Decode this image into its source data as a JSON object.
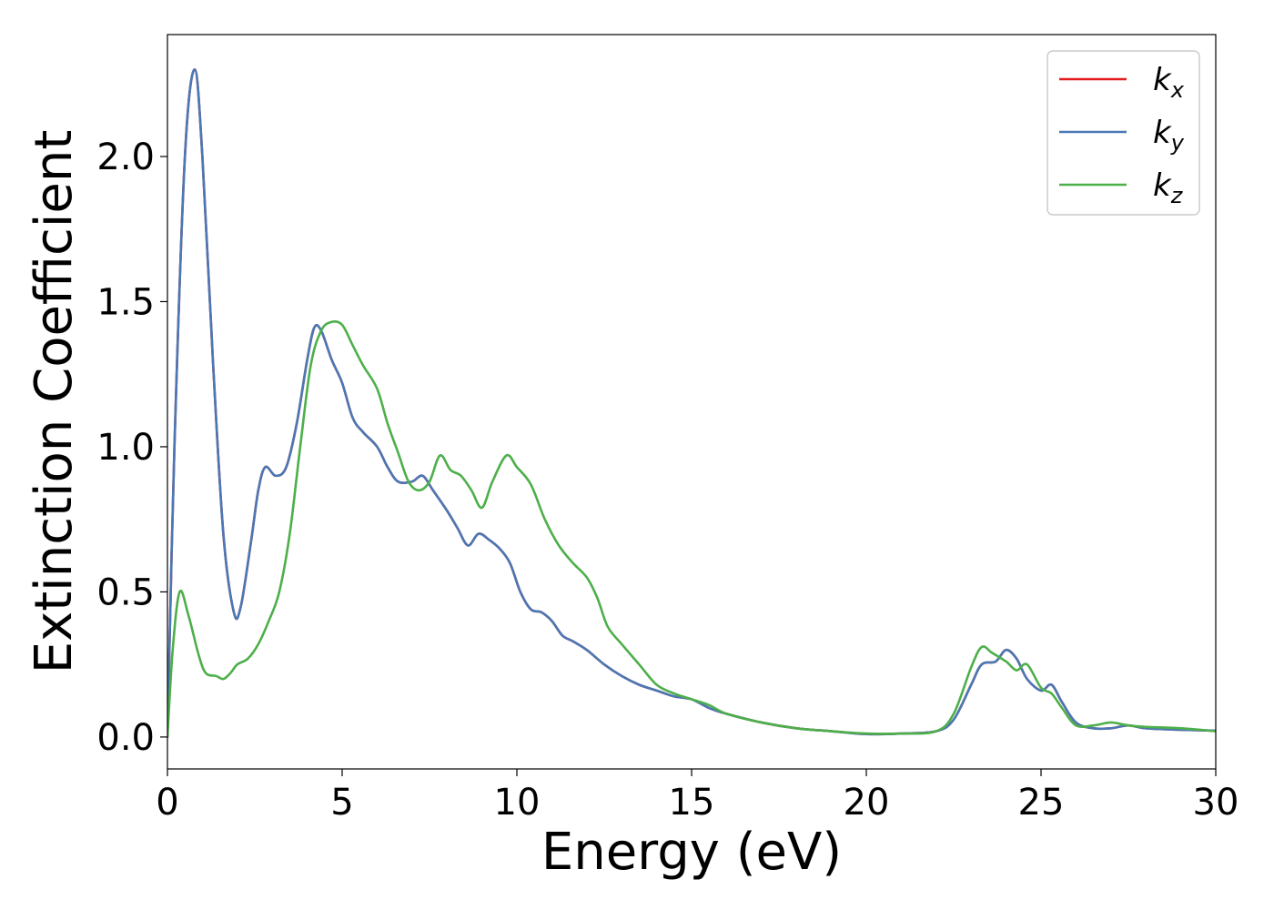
{
  "chart_data": {
    "type": "line",
    "title": "",
    "xlabel": "Energy (eV)",
    "ylabel": "Extinction Coefficient",
    "xlim": [
      0,
      30
    ],
    "ylim": [
      -0.11,
      2.42
    ],
    "xticks": [
      0,
      5,
      10,
      15,
      20,
      25,
      30
    ],
    "xtick_labels": [
      "0",
      "5",
      "10",
      "15",
      "20",
      "25",
      "30"
    ],
    "yticks": [
      0.0,
      0.5,
      1.0,
      1.5,
      2.0
    ],
    "ytick_labels": [
      "0.0",
      "0.5",
      "1.0",
      "1.5",
      "2.0"
    ],
    "grid": false,
    "legend_position": "top-right",
    "series": [
      {
        "name": "k_x",
        "legend_base": "k",
        "legend_sub": "x",
        "color": "#e41a1c",
        "points": [
          [
            0,
            0.0
          ],
          [
            0.2,
            1.0
          ],
          [
            0.5,
            2.0
          ],
          [
            0.78,
            2.3
          ],
          [
            1.0,
            2.0
          ],
          [
            1.3,
            1.3
          ],
          [
            1.6,
            0.7
          ],
          [
            1.9,
            0.43
          ],
          [
            2.1,
            0.45
          ],
          [
            2.4,
            0.68
          ],
          [
            2.6,
            0.85
          ],
          [
            2.8,
            0.93
          ],
          [
            3.1,
            0.9
          ],
          [
            3.4,
            0.93
          ],
          [
            3.7,
            1.08
          ],
          [
            4.0,
            1.3
          ],
          [
            4.2,
            1.41
          ],
          [
            4.4,
            1.4
          ],
          [
            4.7,
            1.3
          ],
          [
            5.0,
            1.22
          ],
          [
            5.3,
            1.1
          ],
          [
            5.6,
            1.05
          ],
          [
            6.0,
            1.0
          ],
          [
            6.3,
            0.93
          ],
          [
            6.6,
            0.88
          ],
          [
            7.0,
            0.88
          ],
          [
            7.3,
            0.9
          ],
          [
            7.6,
            0.85
          ],
          [
            8.0,
            0.78
          ],
          [
            8.3,
            0.72
          ],
          [
            8.6,
            0.66
          ],
          [
            8.9,
            0.7
          ],
          [
            9.2,
            0.68
          ],
          [
            9.5,
            0.65
          ],
          [
            9.8,
            0.6
          ],
          [
            10.1,
            0.5
          ],
          [
            10.4,
            0.44
          ],
          [
            10.7,
            0.43
          ],
          [
            11.0,
            0.4
          ],
          [
            11.3,
            0.35
          ],
          [
            11.6,
            0.33
          ],
          [
            12.0,
            0.3
          ],
          [
            12.5,
            0.25
          ],
          [
            13.0,
            0.21
          ],
          [
            13.5,
            0.18
          ],
          [
            14.0,
            0.16
          ],
          [
            14.5,
            0.14
          ],
          [
            15.0,
            0.13
          ],
          [
            15.5,
            0.1
          ],
          [
            16.0,
            0.08
          ],
          [
            17.0,
            0.05
          ],
          [
            18.0,
            0.03
          ],
          [
            19.0,
            0.02
          ],
          [
            20.0,
            0.01
          ],
          [
            21.0,
            0.012
          ],
          [
            22.0,
            0.02
          ],
          [
            22.5,
            0.06
          ],
          [
            23.0,
            0.18
          ],
          [
            23.3,
            0.25
          ],
          [
            23.7,
            0.26
          ],
          [
            24.0,
            0.3
          ],
          [
            24.3,
            0.27
          ],
          [
            24.6,
            0.2
          ],
          [
            25.0,
            0.16
          ],
          [
            25.3,
            0.18
          ],
          [
            25.6,
            0.12
          ],
          [
            26.0,
            0.05
          ],
          [
            26.5,
            0.03
          ],
          [
            27.0,
            0.03
          ],
          [
            27.5,
            0.04
          ],
          [
            28.0,
            0.03
          ],
          [
            29.0,
            0.025
          ],
          [
            30.0,
            0.022
          ]
        ]
      },
      {
        "name": "k_y",
        "legend_base": "k",
        "legend_sub": "y",
        "color": "#4a78b5",
        "points": [
          [
            0,
            0.0
          ],
          [
            0.2,
            1.0
          ],
          [
            0.5,
            2.0
          ],
          [
            0.78,
            2.3
          ],
          [
            1.0,
            2.0
          ],
          [
            1.3,
            1.3
          ],
          [
            1.6,
            0.7
          ],
          [
            1.9,
            0.43
          ],
          [
            2.1,
            0.45
          ],
          [
            2.4,
            0.68
          ],
          [
            2.6,
            0.85
          ],
          [
            2.8,
            0.93
          ],
          [
            3.1,
            0.9
          ],
          [
            3.4,
            0.93
          ],
          [
            3.7,
            1.08
          ],
          [
            4.0,
            1.3
          ],
          [
            4.2,
            1.41
          ],
          [
            4.4,
            1.4
          ],
          [
            4.7,
            1.3
          ],
          [
            5.0,
            1.22
          ],
          [
            5.3,
            1.1
          ],
          [
            5.6,
            1.05
          ],
          [
            6.0,
            1.0
          ],
          [
            6.3,
            0.93
          ],
          [
            6.6,
            0.88
          ],
          [
            7.0,
            0.88
          ],
          [
            7.3,
            0.9
          ],
          [
            7.6,
            0.85
          ],
          [
            8.0,
            0.78
          ],
          [
            8.3,
            0.72
          ],
          [
            8.6,
            0.66
          ],
          [
            8.9,
            0.7
          ],
          [
            9.2,
            0.68
          ],
          [
            9.5,
            0.65
          ],
          [
            9.8,
            0.6
          ],
          [
            10.1,
            0.5
          ],
          [
            10.4,
            0.44
          ],
          [
            10.7,
            0.43
          ],
          [
            11.0,
            0.4
          ],
          [
            11.3,
            0.35
          ],
          [
            11.6,
            0.33
          ],
          [
            12.0,
            0.3
          ],
          [
            12.5,
            0.25
          ],
          [
            13.0,
            0.21
          ],
          [
            13.5,
            0.18
          ],
          [
            14.0,
            0.16
          ],
          [
            14.5,
            0.14
          ],
          [
            15.0,
            0.13
          ],
          [
            15.5,
            0.1
          ],
          [
            16.0,
            0.08
          ],
          [
            17.0,
            0.05
          ],
          [
            18.0,
            0.03
          ],
          [
            19.0,
            0.02
          ],
          [
            20.0,
            0.01
          ],
          [
            21.0,
            0.012
          ],
          [
            22.0,
            0.02
          ],
          [
            22.5,
            0.06
          ],
          [
            23.0,
            0.18
          ],
          [
            23.3,
            0.25
          ],
          [
            23.7,
            0.26
          ],
          [
            24.0,
            0.3
          ],
          [
            24.3,
            0.27
          ],
          [
            24.6,
            0.2
          ],
          [
            25.0,
            0.16
          ],
          [
            25.3,
            0.18
          ],
          [
            25.6,
            0.12
          ],
          [
            26.0,
            0.05
          ],
          [
            26.5,
            0.03
          ],
          [
            27.0,
            0.03
          ],
          [
            27.5,
            0.04
          ],
          [
            28.0,
            0.03
          ],
          [
            29.0,
            0.025
          ],
          [
            30.0,
            0.022
          ]
        ]
      },
      {
        "name": "k_z",
        "legend_base": "k",
        "legend_sub": "z",
        "color": "#4daf4a",
        "points": [
          [
            0,
            0.0
          ],
          [
            0.15,
            0.3
          ],
          [
            0.35,
            0.5
          ],
          [
            0.6,
            0.42
          ],
          [
            0.9,
            0.28
          ],
          [
            1.1,
            0.22
          ],
          [
            1.4,
            0.21
          ],
          [
            1.6,
            0.2
          ],
          [
            1.8,
            0.22
          ],
          [
            2.0,
            0.25
          ],
          [
            2.3,
            0.27
          ],
          [
            2.6,
            0.32
          ],
          [
            2.9,
            0.4
          ],
          [
            3.2,
            0.5
          ],
          [
            3.5,
            0.7
          ],
          [
            3.8,
            1.0
          ],
          [
            4.1,
            1.28
          ],
          [
            4.4,
            1.4
          ],
          [
            4.7,
            1.43
          ],
          [
            5.0,
            1.42
          ],
          [
            5.3,
            1.35
          ],
          [
            5.6,
            1.28
          ],
          [
            6.0,
            1.2
          ],
          [
            6.3,
            1.08
          ],
          [
            6.6,
            0.98
          ],
          [
            6.9,
            0.88
          ],
          [
            7.2,
            0.85
          ],
          [
            7.5,
            0.88
          ],
          [
            7.8,
            0.97
          ],
          [
            8.1,
            0.92
          ],
          [
            8.4,
            0.9
          ],
          [
            8.7,
            0.85
          ],
          [
            9.0,
            0.79
          ],
          [
            9.3,
            0.88
          ],
          [
            9.7,
            0.97
          ],
          [
            10.0,
            0.93
          ],
          [
            10.4,
            0.87
          ],
          [
            10.8,
            0.75
          ],
          [
            11.2,
            0.66
          ],
          [
            11.6,
            0.6
          ],
          [
            12.0,
            0.55
          ],
          [
            12.3,
            0.48
          ],
          [
            12.6,
            0.38
          ],
          [
            13.0,
            0.32
          ],
          [
            13.5,
            0.25
          ],
          [
            14.0,
            0.18
          ],
          [
            14.5,
            0.15
          ],
          [
            15.0,
            0.13
          ],
          [
            15.5,
            0.11
          ],
          [
            16.0,
            0.08
          ],
          [
            17.0,
            0.05
          ],
          [
            18.0,
            0.03
          ],
          [
            19.0,
            0.02
          ],
          [
            20.0,
            0.012
          ],
          [
            21.0,
            0.012
          ],
          [
            22.0,
            0.02
          ],
          [
            22.5,
            0.08
          ],
          [
            23.0,
            0.24
          ],
          [
            23.3,
            0.31
          ],
          [
            23.6,
            0.29
          ],
          [
            24.0,
            0.26
          ],
          [
            24.3,
            0.23
          ],
          [
            24.6,
            0.25
          ],
          [
            25.0,
            0.17
          ],
          [
            25.3,
            0.15
          ],
          [
            25.6,
            0.1
          ],
          [
            26.0,
            0.04
          ],
          [
            26.5,
            0.04
          ],
          [
            27.0,
            0.05
          ],
          [
            27.5,
            0.04
          ],
          [
            28.0,
            0.035
          ],
          [
            29.0,
            0.03
          ],
          [
            30.0,
            0.02
          ]
        ]
      }
    ]
  }
}
